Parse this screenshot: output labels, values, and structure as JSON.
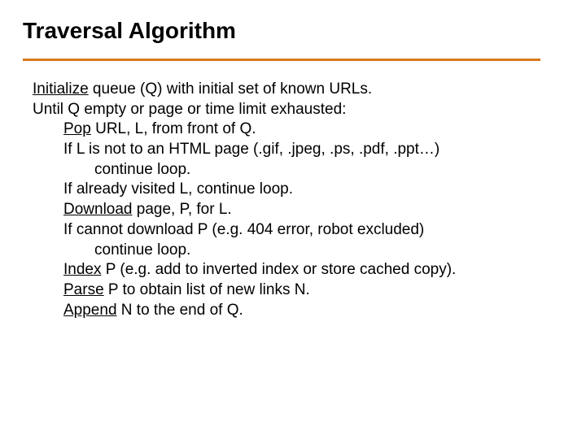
{
  "title": "Traversal Algorithm",
  "divider_color": "#d87a1a",
  "background_color": "#ffffff",
  "text_color": "#000000",
  "title_fontsize": 28,
  "body_fontsize": 19,
  "lines": {
    "l1a": "Initialize",
    "l1b": " queue (Q) with initial set of known URLs.",
    "l2": "Until Q empty or page or time limit exhausted:",
    "l3a": "Pop",
    "l3b": " URL, L, from front of Q.",
    "l4": "If L is not to an HTML page (.gif, .jpeg, .ps, .pdf, .ppt…)",
    "l5": "continue loop.",
    "l6": "If already visited L, continue loop.",
    "l7a": "Download",
    "l7b": " page, P, for L.",
    "l8": "If cannot download P (e.g. 404 error, robot excluded)",
    "l9": "continue loop.",
    "l10a": "Index",
    "l10b": " P (e.g. add to inverted index or store cached copy).",
    "l11a": "Parse",
    "l11b": " P to obtain list of new links N.",
    "l12a": "Append",
    "l12b": " N to the end of Q."
  }
}
